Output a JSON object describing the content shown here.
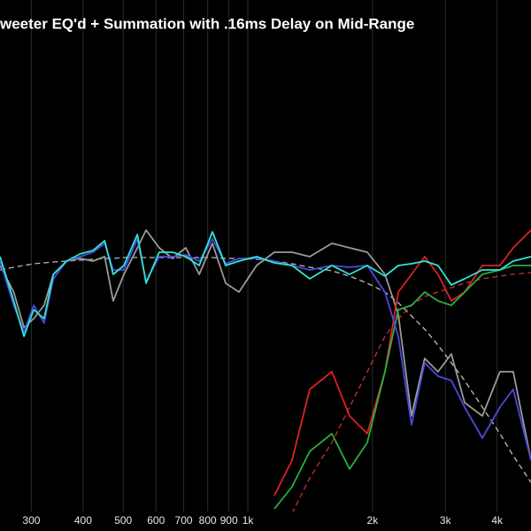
{
  "chart_data": {
    "type": "line",
    "title": "weeter EQ'd + Summation with .16ms Delay on Mid-Range",
    "log_x": true,
    "grid": true,
    "xlim": [
      252,
      4830
    ],
    "ylim": [
      -25,
      575
    ],
    "xticks": [
      300,
      400,
      500,
      600,
      700,
      800,
      900,
      {
        "value": 1000,
        "label": "1k"
      },
      {
        "value": 2000,
        "label": "2k"
      },
      {
        "value": 3000,
        "label": "3k"
      },
      {
        "value": 4000,
        "label": "4k"
      }
    ],
    "x": [
      252,
      272,
      288,
      304,
      322,
      339,
      365,
      393,
      423,
      451,
      473,
      502,
      541,
      568,
      611,
      658,
      708,
      763,
      821,
      884,
      952,
      1050,
      1159,
      1279,
      1411,
      1596,
      1761,
      1943,
      2144,
      2308,
      2485,
      2675,
      2880,
      3101,
      3339,
      3684,
      4064,
      4375,
      4830
    ],
    "series": [
      {
        "color": "#bbbbbb",
        "dashed": true,
        "values": [
          270,
          273,
          275,
          277,
          278,
          279,
          280,
          281,
          282,
          283,
          283,
          284,
          284,
          284,
          284,
          284,
          284,
          284,
          284,
          283,
          283,
          282,
          280,
          277,
          273,
          269,
          263,
          255,
          245,
          233,
          218,
          203,
          185,
          165,
          145,
          115,
          85,
          60,
          30
        ]
      },
      {
        "color": "#c83030",
        "dashed": true,
        "values": [
          null,
          null,
          null,
          null,
          null,
          null,
          null,
          null,
          null,
          null,
          null,
          null,
          null,
          null,
          null,
          null,
          null,
          null,
          null,
          null,
          null,
          null,
          null,
          -5,
          35,
          75,
          115,
          155,
          195,
          215,
          230,
          240,
          245,
          250,
          255,
          260,
          263,
          265,
          267
        ]
      },
      {
        "color": "#9a9a9a",
        "dashed": false,
        "values": [
          275,
          245,
          205,
          215,
          230,
          265,
          280,
          283,
          280,
          285,
          235,
          265,
          295,
          315,
          295,
          283,
          295,
          265,
          300,
          255,
          245,
          275,
          290,
          290,
          285,
          300,
          295,
          290,
          265,
          220,
          105,
          170,
          155,
          175,
          120,
          105,
          155,
          155,
          55
        ]
      },
      {
        "color": "#e02020",
        "dashed": false,
        "values": [
          null,
          null,
          null,
          null,
          null,
          null,
          null,
          null,
          null,
          null,
          null,
          null,
          null,
          null,
          null,
          null,
          null,
          null,
          null,
          null,
          null,
          null,
          15,
          55,
          135,
          155,
          105,
          85,
          155,
          245,
          265,
          285,
          265,
          235,
          245,
          275,
          275,
          295,
          315
        ]
      },
      {
        "color": "#28b040",
        "dashed": false,
        "values": [
          null,
          null,
          null,
          null,
          null,
          null,
          null,
          null,
          null,
          null,
          null,
          null,
          null,
          null,
          null,
          null,
          null,
          null,
          null,
          null,
          null,
          null,
          0,
          25,
          65,
          85,
          45,
          75,
          155,
          225,
          230,
          245,
          235,
          230,
          245,
          265,
          270,
          275,
          275
        ]
      },
      {
        "color": "#4a4adb",
        "dashed": false,
        "values": [
          280,
          230,
          200,
          230,
          210,
          260,
          280,
          285,
          290,
          300,
          270,
          270,
          305,
          257,
          285,
          285,
          287,
          280,
          305,
          277,
          283,
          283,
          280,
          275,
          270,
          275,
          273,
          275,
          245,
          195,
          95,
          165,
          150,
          145,
          115,
          80,
          115,
          135,
          55
        ]
      },
      {
        "color": "#2ee6d6",
        "dashed": false,
        "values": [
          285,
          235,
          195,
          225,
          215,
          265,
          280,
          288,
          292,
          303,
          265,
          275,
          310,
          255,
          290,
          290,
          285,
          275,
          313,
          275,
          280,
          285,
          278,
          275,
          260,
          275,
          265,
          275,
          263,
          275,
          277,
          280,
          275,
          253,
          260,
          270,
          270,
          280,
          285
        ]
      }
    ]
  }
}
